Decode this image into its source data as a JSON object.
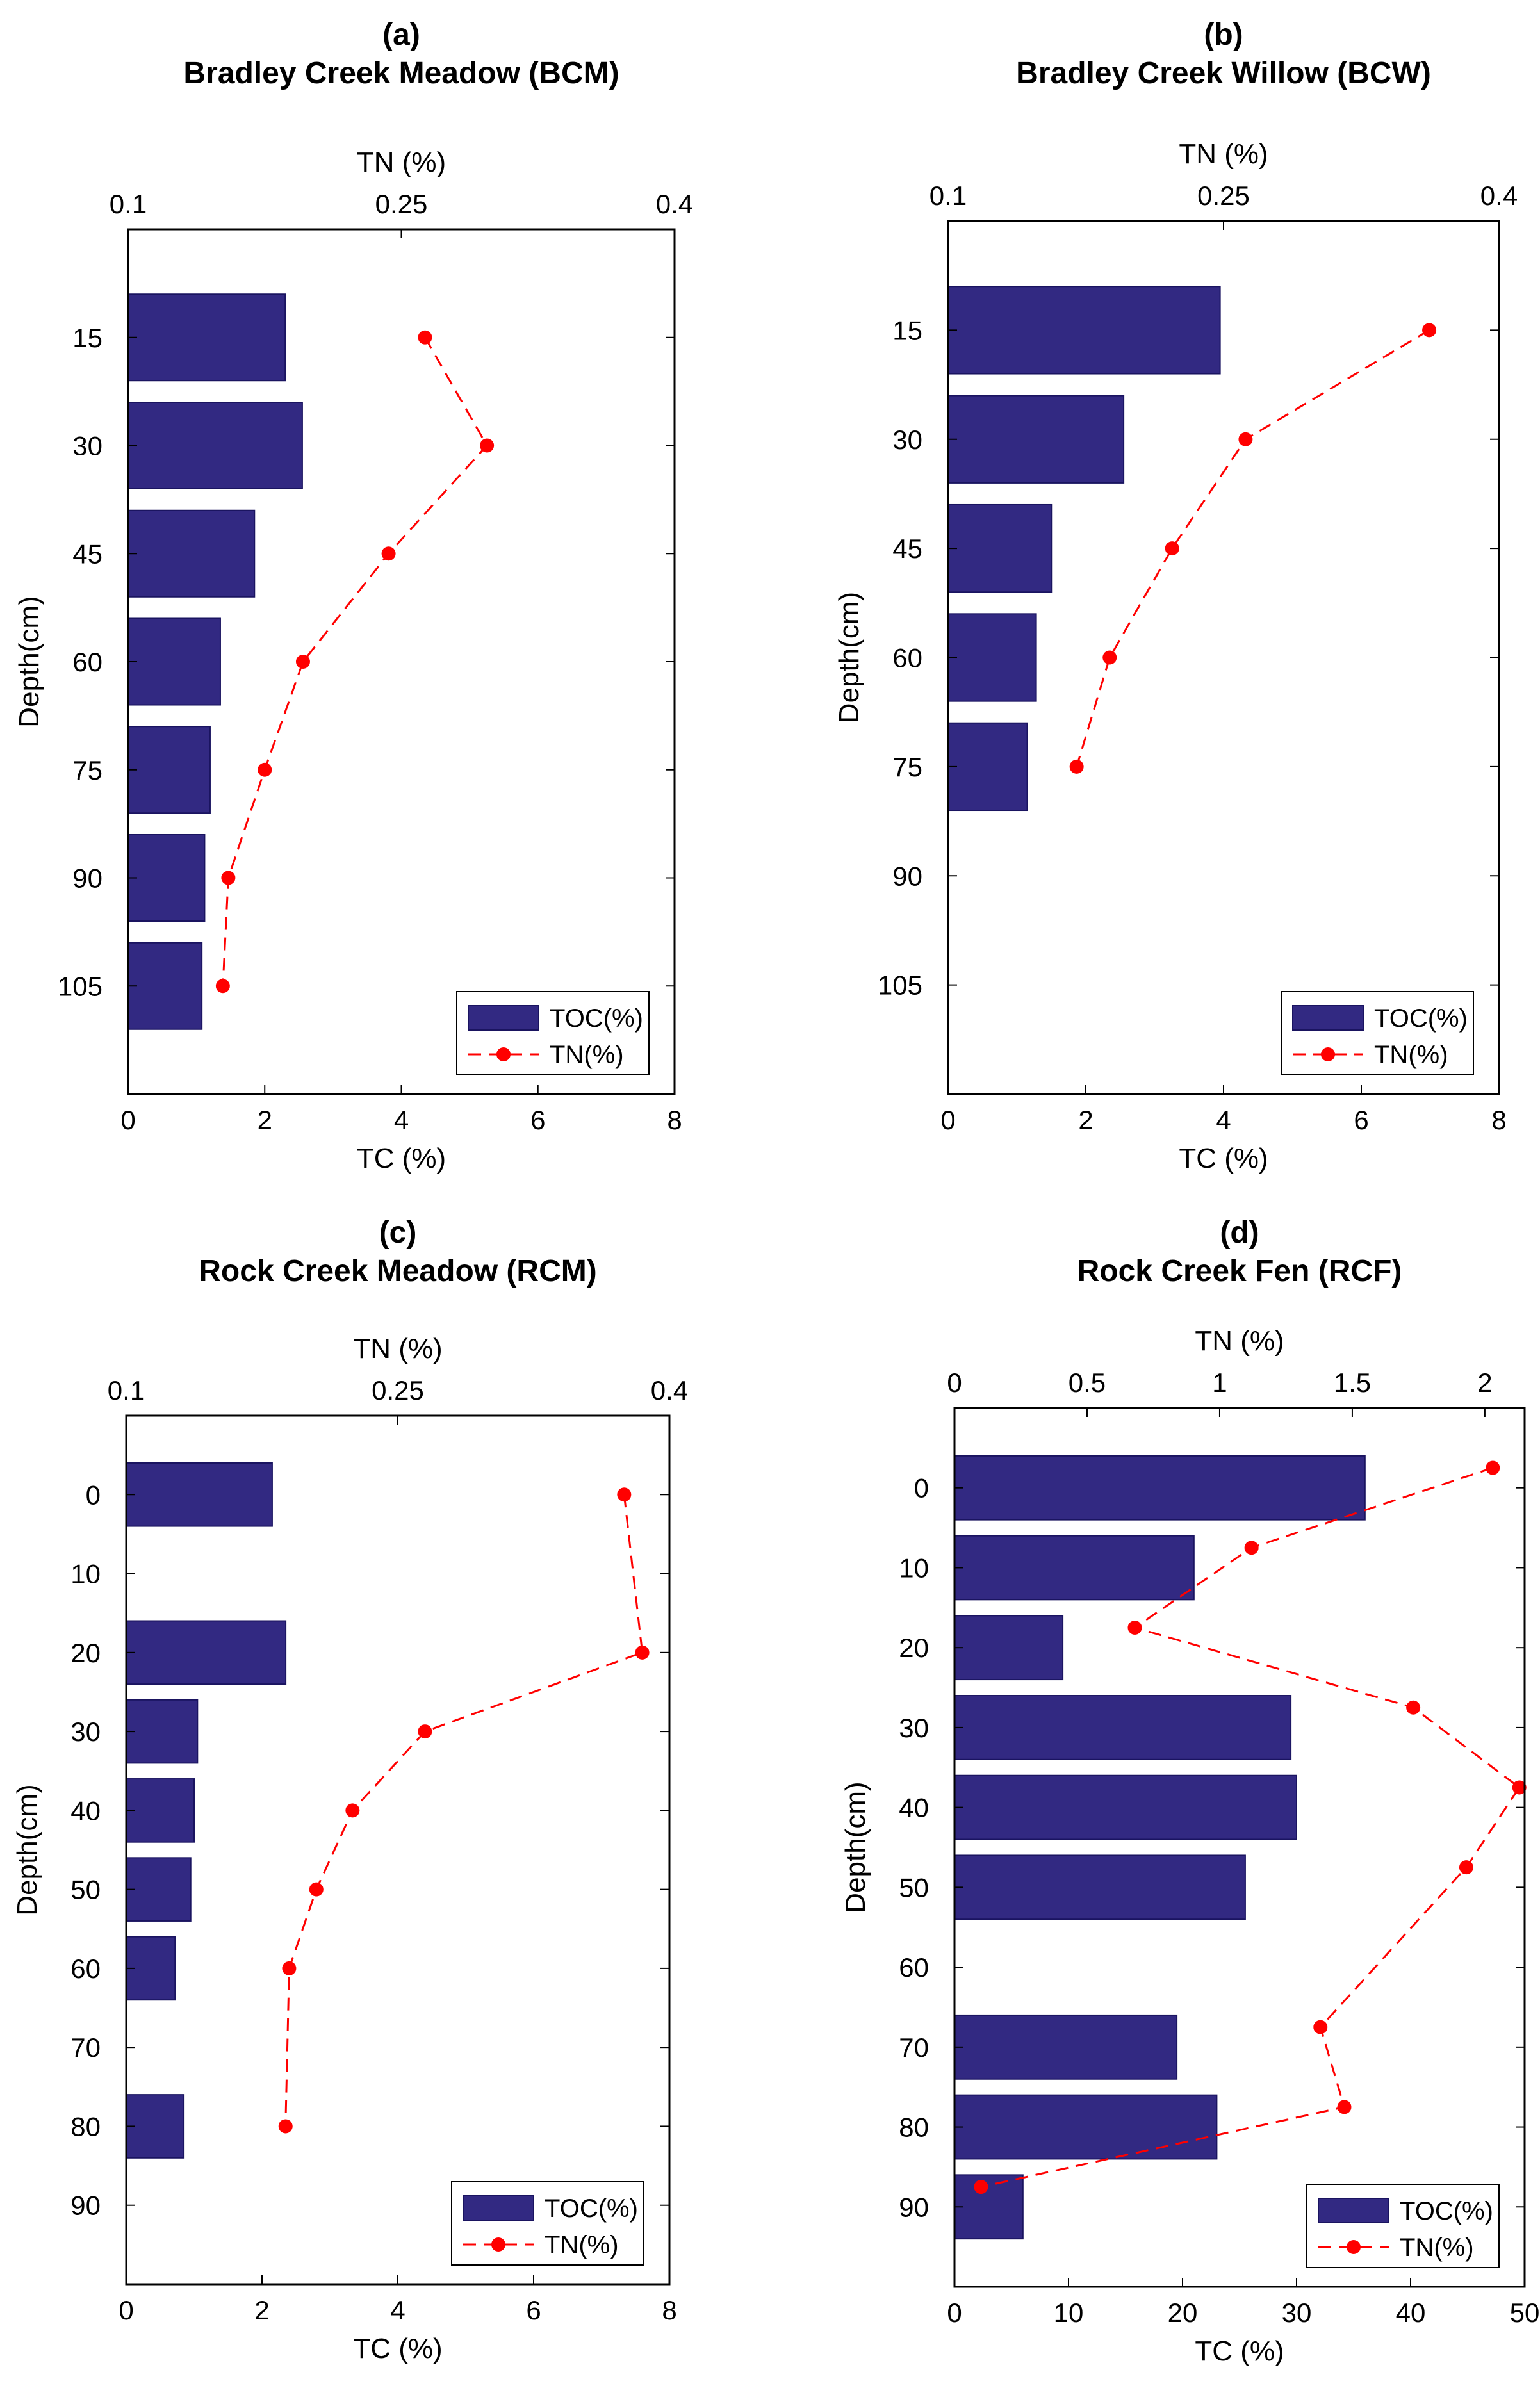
{
  "colors": {
    "toc_bar": "#322982",
    "tn_line": "#ff0000",
    "axis": "#000000"
  },
  "chart_data": [
    {
      "id": "a",
      "type": "bar",
      "panel_label": "(a)",
      "title": "Bradley Creek Meadow (BCM)",
      "ylabel": "Depth(cm)",
      "xlabel_bottom": "TC (%)",
      "xlabel_top": "TN (%)",
      "bottom_ticks": [
        "0",
        "2",
        "4",
        "6",
        "8"
      ],
      "bottom_range": [
        0,
        8
      ],
      "top_ticks": [
        "0.1",
        "0.25",
        "0.4"
      ],
      "top_range": [
        0.1,
        0.4
      ],
      "depth_range": [
        0,
        120
      ],
      "depth_ticks": [
        "15",
        "30",
        "45",
        "60",
        "75",
        "90",
        "105"
      ],
      "toc": {
        "name": "TOC(%)",
        "depths": [
          15,
          30,
          45,
          60,
          75,
          90,
          105
        ],
        "values": [
          2.3,
          2.55,
          1.85,
          1.35,
          1.2,
          1.12,
          1.08
        ]
      },
      "tn": {
        "name": "TN(%)",
        "depths": [
          15,
          30,
          45,
          60,
          75,
          90,
          105
        ],
        "values": [
          0.263,
          0.297,
          0.243,
          0.196,
          0.175,
          0.155,
          0.152
        ]
      },
      "legend": "lower-right"
    },
    {
      "id": "b",
      "type": "bar",
      "panel_label": "(b)",
      "title": "Bradley Creek Willow (BCW)",
      "ylabel": "Depth(cm)",
      "xlabel_bottom": "TC (%)",
      "xlabel_top": "TN (%)",
      "bottom_ticks": [
        "0",
        "2",
        "4",
        "6",
        "8"
      ],
      "bottom_range": [
        0,
        8
      ],
      "top_ticks": [
        "0.1",
        "0.25",
        "0.4"
      ],
      "top_range": [
        0.1,
        0.4
      ],
      "depth_range": [
        0,
        120
      ],
      "depth_ticks": [
        "15",
        "30",
        "45",
        "60",
        "75",
        "90",
        "105"
      ],
      "toc": {
        "name": "TOC(%)",
        "depths": [
          15,
          30,
          45,
          60,
          75
        ],
        "values": [
          3.95,
          2.55,
          1.5,
          1.28,
          1.15
        ]
      },
      "tn": {
        "name": "TN(%)",
        "depths": [
          15,
          30,
          45,
          60,
          75
        ],
        "values": [
          0.362,
          0.262,
          0.222,
          0.188,
          0.17
        ]
      },
      "legend": "lower-right"
    },
    {
      "id": "c",
      "type": "bar",
      "panel_label": "(c)",
      "title": "Rock Creek Meadow (RCM)",
      "ylabel": "Depth(cm)",
      "xlabel_bottom": "TC (%)",
      "xlabel_top": "TN (%)",
      "bottom_ticks": [
        "0",
        "2",
        "4",
        "6",
        "8"
      ],
      "bottom_range": [
        0,
        8
      ],
      "top_ticks": [
        "0.1",
        "0.25",
        "0.4"
      ],
      "top_range": [
        0.1,
        0.4
      ],
      "depth_range": [
        -10,
        100
      ],
      "depth_ticks": [
        "0",
        "10",
        "20",
        "30",
        "40",
        "50",
        "60",
        "70",
        "80",
        "90"
      ],
      "toc": {
        "name": "TOC(%)",
        "depths": [
          0,
          20,
          30,
          40,
          50,
          60,
          80
        ],
        "values": [
          2.15,
          2.35,
          1.05,
          1.0,
          0.95,
          0.72,
          0.85
        ]
      },
      "tn": {
        "name": "TN(%)",
        "depths": [
          0,
          20,
          30,
          40,
          50,
          60,
          80
        ],
        "values": [
          0.375,
          0.385,
          0.265,
          0.225,
          0.205,
          0.19,
          0.188
        ]
      },
      "legend": "lower-right"
    },
    {
      "id": "d",
      "type": "bar",
      "panel_label": "(d)",
      "title": "Rock Creek Fen (RCF)",
      "ylabel": "Depth(cm)",
      "xlabel_bottom": "TC (%)",
      "xlabel_top": "TN (%)",
      "bottom_ticks": [
        "0",
        "10",
        "20",
        "30",
        "40",
        "50"
      ],
      "bottom_range": [
        0,
        50
      ],
      "top_ticks": [
        "0",
        "0.5",
        "1",
        "1.5",
        "2"
      ],
      "top_range": [
        0,
        2.15
      ],
      "depth_range": [
        -10,
        100
      ],
      "depth_ticks": [
        "0",
        "10",
        "20",
        "30",
        "40",
        "50",
        "60",
        "70",
        "80",
        "90"
      ],
      "toc": {
        "name": "TOC(%)",
        "depths": [
          0,
          10,
          20,
          30,
          40,
          50,
          70,
          80,
          90
        ],
        "values": [
          36,
          21,
          9.5,
          29.5,
          30,
          25.5,
          19.5,
          23,
          6
        ]
      },
      "tn": {
        "name": "TN(%)",
        "depths": [
          -2.5,
          7.5,
          17.5,
          27.5,
          37.5,
          47.5,
          67.5,
          77.5,
          87.5
        ],
        "values": [
          2.03,
          1.12,
          0.68,
          1.73,
          2.13,
          1.93,
          1.38,
          1.47,
          0.1
        ]
      },
      "legend": "lower-right"
    }
  ]
}
